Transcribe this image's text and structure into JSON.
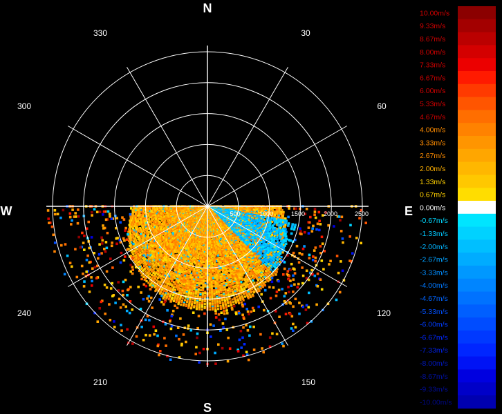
{
  "chart_data": {
    "type": "polar-radar-ppi",
    "quantity": "radial velocity",
    "cardinal_labels": [
      "N",
      "E",
      "S",
      "W"
    ],
    "azimuth_labels": [
      "30",
      "60",
      "120",
      "150",
      "210",
      "240",
      "300",
      "330"
    ],
    "azimuth_label_angles": [
      30,
      60,
      120,
      150,
      210,
      240,
      300,
      330
    ],
    "radial_line_step_deg": 30,
    "range_rings": [
      500,
      1000,
      1500,
      2000,
      2500
    ],
    "range_labels": [
      "500",
      "1000",
      "1500",
      "2000",
      "2500"
    ],
    "range_max": 2600,
    "data_sector_deg": [
      90,
      270
    ],
    "colorbar": {
      "labels": [
        "10.00m/s",
        "9.33m/s",
        "8.67m/s",
        "8.00m/s",
        "7.33m/s",
        "6.67m/s",
        "6.00m/s",
        "5.33m/s",
        "4.67m/s",
        "4.00m/s",
        "3.33m/s",
        "2.67m/s",
        "2.00m/s",
        "1.33m/s",
        "0.67m/s",
        "0.00m/s",
        "-0.67m/s",
        "-1.33m/s",
        "-2.00m/s",
        "-2.67m/s",
        "-3.33m/s",
        "-4.00m/s",
        "-4.67m/s",
        "-5.33m/s",
        "-6.00m/s",
        "-6.67m/s",
        "-7.33m/s",
        "-8.00m/s",
        "-8.67m/s",
        "-9.33m/s",
        "-10.00m/s"
      ],
      "values": [
        10.0,
        9.33,
        8.67,
        8.0,
        7.33,
        6.67,
        6.0,
        5.33,
        4.67,
        4.0,
        3.33,
        2.67,
        2.0,
        1.33,
        0.67,
        0.0,
        -0.67,
        -1.33,
        -2.0,
        -2.67,
        -3.33,
        -4.0,
        -4.67,
        -5.33,
        -6.0,
        -6.67,
        -7.33,
        -8.0,
        -8.67,
        -9.33,
        -10.0
      ],
      "colors": [
        "#8b0000",
        "#a30000",
        "#bb0000",
        "#d40000",
        "#ec0000",
        "#ff1a00",
        "#ff3a00",
        "#ff5500",
        "#ff6e00",
        "#ff8200",
        "#ff9500",
        "#ffa600",
        "#ffb700",
        "#ffc800",
        "#ffdd00",
        "#ffffff",
        "#00e5ff",
        "#00d2ff",
        "#00bfff",
        "#00acff",
        "#0098ff",
        "#0085ff",
        "#0072ff",
        "#005fff",
        "#004cff",
        "#0039ff",
        "#0026ff",
        "#0013f5",
        "#0000e0",
        "#0000c8",
        "#0000b0"
      ],
      "label_colors": [
        "#d10000",
        "#d10000",
        "#d10000",
        "#d10000",
        "#d10000",
        "#d10000",
        "#d10000",
        "#d10000",
        "#d10000",
        "#ff8c00",
        "#ff8c00",
        "#ff8c00",
        "#ffb000",
        "#ffd000",
        "#ffd000",
        "#ffffff",
        "#00d8ff",
        "#00c8ff",
        "#00b4ff",
        "#00a0ff",
        "#008cff",
        "#0078ff",
        "#0064ff",
        "#0050ff",
        "#003cff",
        "#0028ff",
        "#0020e0",
        "#0018c0",
        "#0010a0",
        "#000c90",
        "#000880"
      ]
    },
    "gates": {
      "note": "Velocity gates present only in the southern half-disk (az 90-270); near-range mostly +1 to +4 m/s, negative velocities to the ESE, scattered high values at far range.",
      "near_range_max": 1400,
      "dominant_velocity_range": [
        0.67,
        4.67
      ],
      "negative_sector_deg": [
        100,
        135
      ]
    }
  }
}
